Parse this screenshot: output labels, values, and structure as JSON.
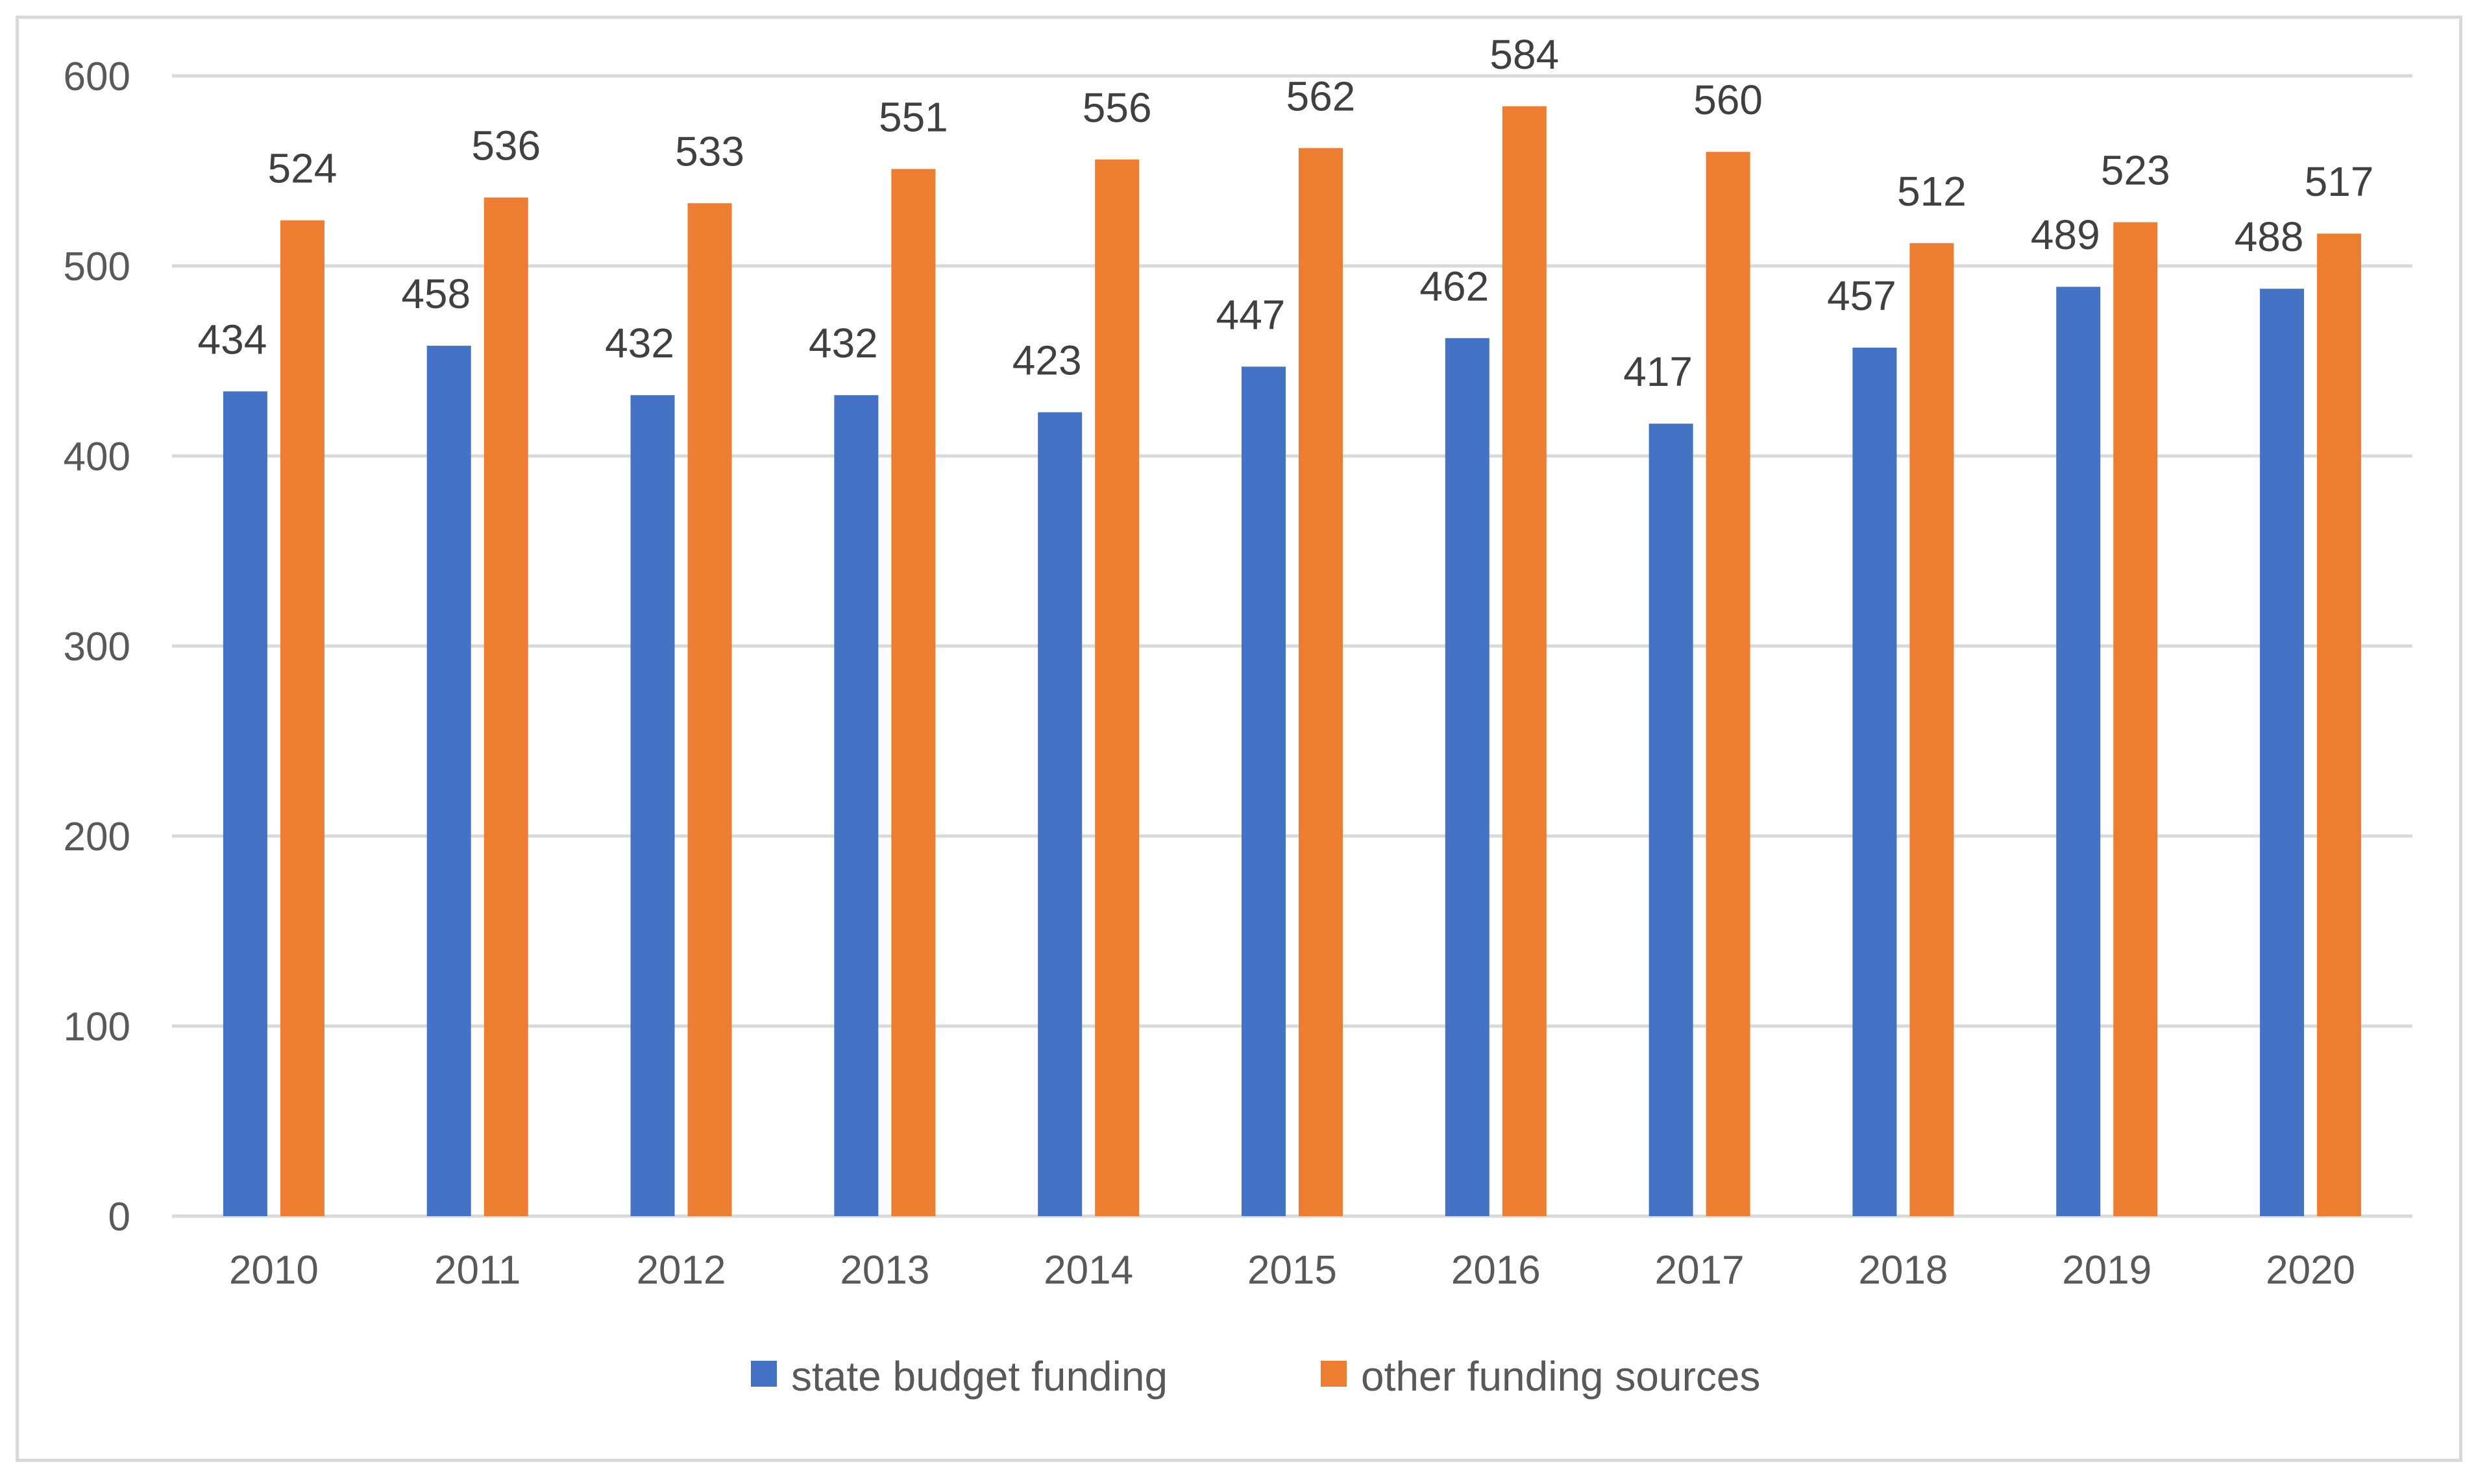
{
  "chart_data": {
    "type": "bar",
    "title": "",
    "xlabel": "",
    "ylabel": "",
    "categories": [
      "2010",
      "2011",
      "2012",
      "2013",
      "2014",
      "2015",
      "2016",
      "2017",
      "2018",
      "2019",
      "2020"
    ],
    "series": [
      {
        "name": "state budget funding",
        "color": "#4472C4",
        "values": [
          434,
          458,
          432,
          432,
          423,
          447,
          462,
          417,
          457,
          489,
          488
        ]
      },
      {
        "name": "other funding sources",
        "color": "#ED7D31",
        "values": [
          524,
          536,
          533,
          551,
          556,
          562,
          584,
          560,
          512,
          523,
          517
        ]
      }
    ],
    "ylim": [
      0,
      600
    ],
    "yticks": [
      0,
      100,
      200,
      300,
      400,
      500,
      600
    ],
    "grid": true,
    "gridColor": "#d9d9d9",
    "legend": "bottom-center"
  }
}
